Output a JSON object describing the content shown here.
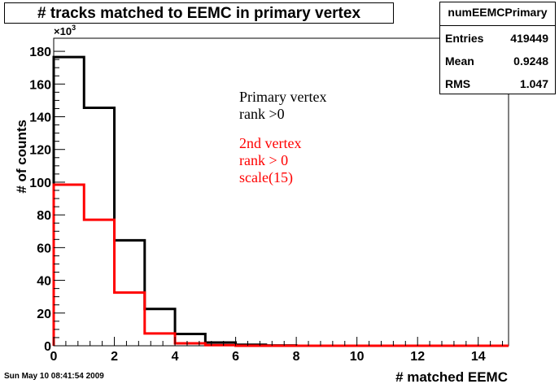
{
  "title": "# tracks matched to EEMC  in primary vertex",
  "stats": {
    "name": "numEEMCPrimary",
    "rows": [
      {
        "key": "Entries",
        "value": "419449"
      },
      {
        "key": "Mean",
        "value": "0.9248"
      },
      {
        "key": "RMS",
        "value": "1.047"
      }
    ]
  },
  "footer_date": "Sun May 10 08:41:54 2009",
  "chart_data": {
    "type": "line",
    "title": "# tracks matched to EEMC  in primary vertex",
    "xlabel": "# matched EEMC",
    "ylabel": "# of counts",
    "y_multiplier": "×10",
    "y_multiplier_exp": "3",
    "xlim": [
      0,
      15
    ],
    "ylim": [
      0,
      188
    ],
    "x_ticks": [
      0,
      2,
      4,
      6,
      8,
      10,
      12,
      14
    ],
    "y_ticks": [
      0,
      20,
      40,
      60,
      80,
      100,
      120,
      140,
      160,
      180
    ],
    "bin_edges": [
      0,
      1,
      2,
      3,
      4,
      5,
      6,
      7,
      8,
      9,
      10,
      11,
      12,
      13,
      14,
      15
    ],
    "series": [
      {
        "color": "#000000",
        "values": [
          176.5,
          145.5,
          64.5,
          22.5,
          7.2,
          2.0,
          0.6,
          0.2,
          0,
          0,
          0,
          0,
          0,
          0,
          0
        ]
      },
      {
        "color": "#ff0000",
        "values": [
          98.5,
          77.0,
          32.5,
          7.5,
          1.5,
          0.4,
          0,
          0,
          0,
          0,
          0,
          0,
          0,
          0,
          0
        ]
      }
    ],
    "annotations": [
      {
        "lines": [
          "Primary vertex",
          "rank >0"
        ],
        "color": "#000000"
      },
      {
        "lines": [
          "2nd vertex",
          "rank > 0",
          "scale(15)"
        ],
        "color": "#ff0000"
      }
    ]
  }
}
